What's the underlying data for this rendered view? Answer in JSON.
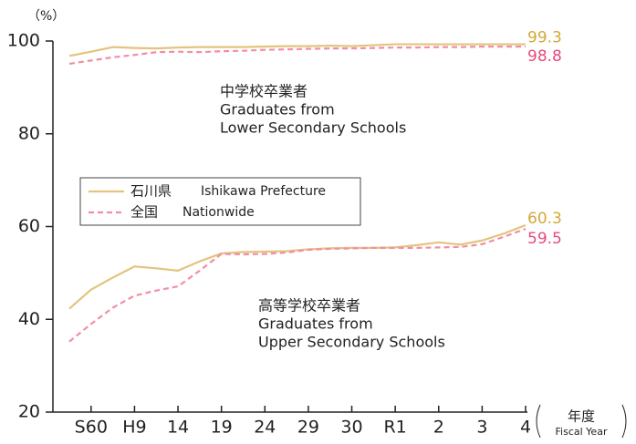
{
  "chart_data": {
    "type": "line",
    "y_unit": "（%）",
    "x_label": "年度",
    "x_label_en": "Fiscal Year",
    "categories": [
      null,
      "S60",
      null,
      "H9",
      null,
      "14",
      null,
      "19",
      null,
      "24",
      null,
      "29",
      null,
      "30",
      null,
      "R1",
      null,
      "2",
      null,
      "3",
      null,
      "4"
    ],
    "ylim": [
      20,
      100
    ],
    "yticks": [
      20,
      40,
      60,
      80,
      100
    ],
    "legend": [
      {
        "label": "石川県",
        "label_en": "Ishikawa Prefecture",
        "color": "#e3c47f",
        "label_color": "#d4a838",
        "dashed": false
      },
      {
        "label": "全国",
        "label_en": "Nationwide",
        "color": "#f28ea4",
        "label_color": "#e8497a",
        "dashed": true
      }
    ],
    "series": [
      {
        "legend": 0,
        "values": [
          96.8,
          97.7,
          98.7,
          98.5,
          98.4,
          98.6,
          98.7,
          98.7,
          98.7,
          98.8,
          98.9,
          98.9,
          99.0,
          98.9,
          99.1,
          99.3,
          99.3,
          99.3,
          99.3,
          99.3,
          99.3,
          99.3
        ]
      },
      {
        "legend": 1,
        "values": [
          95.1,
          95.8,
          96.5,
          97.0,
          97.6,
          97.7,
          97.6,
          97.8,
          97.9,
          98.1,
          98.2,
          98.3,
          98.4,
          98.4,
          98.5,
          98.6,
          98.6,
          98.7,
          98.7,
          98.8,
          98.8,
          98.8
        ]
      },
      {
        "legend": 0,
        "values": [
          42.3,
          46.4,
          49.0,
          51.4,
          51.0,
          50.5,
          52.5,
          54.2,
          54.5,
          54.6,
          54.7,
          55.1,
          55.3,
          55.4,
          55.4,
          55.5,
          56.0,
          56.6,
          56.1,
          57.0,
          58.5,
          60.3
        ]
      },
      {
        "legend": 1,
        "values": [
          35.2,
          39.0,
          42.5,
          45.1,
          46.2,
          47.1,
          50.5,
          54.1,
          54.0,
          54.1,
          54.4,
          55.0,
          55.2,
          55.3,
          55.4,
          55.4,
          55.4,
          55.5,
          55.6,
          56.2,
          57.8,
          59.5
        ]
      }
    ],
    "annotations": [
      {
        "lines": [
          "中学校卒業者",
          "Graduates from",
          "Lower Secondary Schools"
        ]
      },
      {
        "lines": [
          "高等学校卒業者",
          "Graduates from",
          "Upper Secondary Schools"
        ]
      }
    ]
  }
}
